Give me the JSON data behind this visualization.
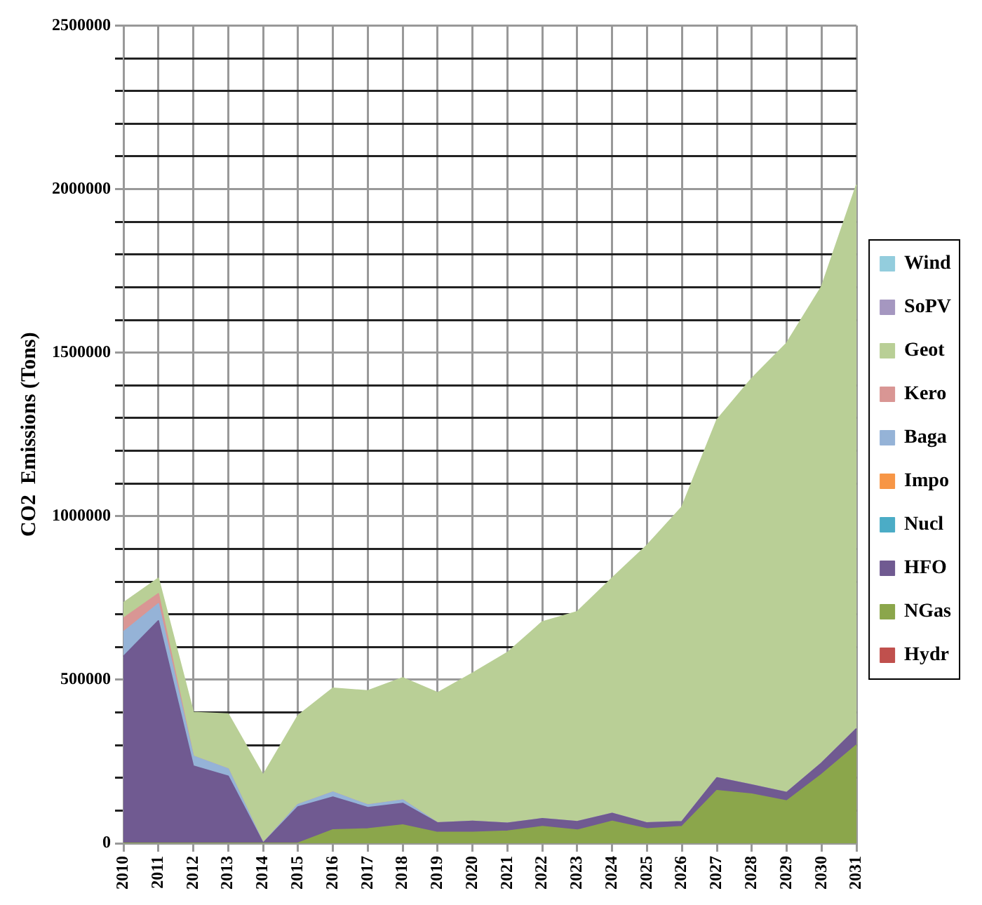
{
  "chart_data": {
    "type": "area",
    "ylabel": "CO2  Emissions (Tons)",
    "stacked": true,
    "grid": true,
    "legend": "right",
    "categories": [
      "2010",
      "2011",
      "2012",
      "2013",
      "2014",
      "2015",
      "2016",
      "2017",
      "2018",
      "2019",
      "2020",
      "2021",
      "2022",
      "2023",
      "2024",
      "2025",
      "2026",
      "2027",
      "2028",
      "2029",
      "2030",
      "2031"
    ],
    "ylim": [
      0,
      2500000
    ],
    "yticks": [
      0,
      {
        "value": 100000,
        "label": null
      },
      {
        "value": 200000,
        "label": null
      },
      {
        "value": 300000,
        "label": null
      },
      {
        "value": 400000,
        "label": null
      },
      500000,
      {
        "value": 600000,
        "label": null
      },
      {
        "value": 700000,
        "label": null
      },
      {
        "value": 800000,
        "label": null
      },
      {
        "value": 900000,
        "label": null
      },
      1000000,
      {
        "value": 1100000,
        "label": null
      },
      {
        "value": 1200000,
        "label": null
      },
      {
        "value": 1300000,
        "label": null
      },
      {
        "value": 1400000,
        "label": null
      },
      1500000,
      {
        "value": 1600000,
        "label": null
      },
      {
        "value": 1700000,
        "label": null
      },
      {
        "value": 1800000,
        "label": null
      },
      {
        "value": 1900000,
        "label": null
      },
      2000000,
      {
        "value": 2100000,
        "label": null
      },
      {
        "value": 2200000,
        "label": null
      },
      {
        "value": 2300000,
        "label": null
      },
      {
        "value": 2400000,
        "label": null
      },
      2500000
    ],
    "series": [
      {
        "name": "Hydr",
        "color": "#c0504d",
        "values": [
          null,
          null,
          null,
          null,
          null,
          null,
          null,
          null,
          null,
          null,
          null,
          null,
          null,
          null,
          null,
          null,
          null,
          null,
          null,
          null,
          null,
          null
        ]
      },
      {
        "name": "NGas",
        "color": "#8ba64b",
        "values": [
          0,
          0,
          0,
          0,
          0,
          0,
          41000,
          44000,
          56000,
          33000,
          33000,
          37000,
          51000,
          40000,
          67000,
          44000,
          51000,
          161000,
          150000,
          129000,
          210000,
          300000
        ]
      },
      {
        "name": "HFO",
        "color": "#705a91",
        "values": [
          571000,
          680000,
          236000,
          205000,
          0,
          111000,
          100000,
          65000,
          66000,
          29000,
          34000,
          24000,
          24000,
          26000,
          24000,
          18000,
          15000,
          39000,
          28000,
          26000,
          35000,
          50000
        ]
      },
      {
        "name": "Nucl",
        "color": "#4bacc6",
        "values": [
          null,
          null,
          null,
          null,
          null,
          null,
          null,
          null,
          null,
          null,
          null,
          null,
          null,
          null,
          null,
          null,
          null,
          null,
          null,
          null,
          null,
          null
        ]
      },
      {
        "name": "Impo",
        "color": "#f79646",
        "values": [
          null,
          null,
          null,
          null,
          null,
          null,
          null,
          null,
          null,
          null,
          null,
          null,
          null,
          null,
          null,
          null,
          null,
          null,
          null,
          null,
          null,
          null
        ]
      },
      {
        "name": "Baga",
        "color": "#95b3d7",
        "values": [
          75000,
          52000,
          30000,
          22000,
          0,
          7000,
          15000,
          8000,
          10000,
          0,
          0,
          0,
          0,
          0,
          0,
          0,
          0,
          0,
          0,
          0,
          0,
          0
        ]
      },
      {
        "name": "Kero",
        "color": "#d99694",
        "values": [
          42000,
          31000,
          0,
          0,
          0,
          0,
          0,
          0,
          0,
          0,
          0,
          0,
          0,
          0,
          0,
          0,
          0,
          0,
          0,
          0,
          0,
          0
        ]
      },
      {
        "name": "Geot",
        "color": "#b9cf96",
        "values": [
          47000,
          47000,
          134000,
          168000,
          208000,
          272000,
          318000,
          349000,
          374000,
          398000,
          453000,
          522000,
          602000,
          642000,
          720000,
          849000,
          962000,
          1094000,
          1243000,
          1374000,
          1457000,
          1663000
        ]
      },
      {
        "name": "SoPV",
        "color": "#a597c0",
        "values": [
          null,
          null,
          null,
          null,
          null,
          null,
          null,
          null,
          null,
          null,
          null,
          null,
          null,
          null,
          null,
          null,
          null,
          null,
          null,
          null,
          null,
          null
        ]
      },
      {
        "name": "Wind",
        "color": "#93cddd",
        "values": [
          null,
          null,
          null,
          null,
          null,
          null,
          null,
          null,
          null,
          null,
          null,
          null,
          null,
          null,
          null,
          null,
          null,
          null,
          null,
          null,
          null,
          null
        ]
      }
    ]
  }
}
